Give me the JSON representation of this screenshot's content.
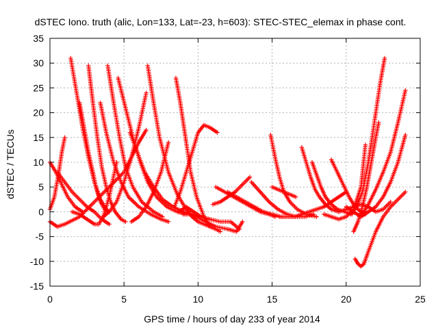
{
  "chart_data": {
    "type": "scatter",
    "title": "dSTEC Iono. truth (alic, Lon=133, Lat=-23, h=603): STEC-STEC_elemax in phase cont.",
    "xlabel": "GPS time / hours of day 233 of year 2014",
    "ylabel": "dSTEC  / TECUs",
    "xlim": [
      0,
      25
    ],
    "ylim": [
      -15,
      35
    ],
    "xticks": [
      0,
      5,
      10,
      15,
      20,
      25
    ],
    "yticks": [
      -15,
      -10,
      -5,
      0,
      5,
      10,
      15,
      20,
      25,
      30,
      35
    ],
    "grid": true,
    "marker": "plus",
    "color": "#ff0000",
    "series": [
      {
        "x": [
          0.0,
          0.3,
          0.6,
          0.8,
          1.0
        ],
        "y": [
          0.5,
          3,
          8,
          12,
          15
        ]
      },
      {
        "x": [
          0.0,
          0.4,
          0.8,
          1.2,
          1.7,
          2.2
        ],
        "y": [
          10,
          8,
          5.5,
          3,
          1,
          0
        ]
      },
      {
        "x": [
          0.0,
          0.5,
          1.0,
          2.0,
          3.0,
          4.0,
          5.0,
          5.5,
          6.0,
          6.5
        ],
        "y": [
          -2,
          -3,
          -2.5,
          -1,
          2,
          5,
          8,
          11,
          14,
          16.5
        ]
      },
      {
        "x": [
          1.4,
          1.8,
          2.2,
          2.6,
          3.0,
          3.4,
          3.8,
          4.0
        ],
        "y": [
          31,
          24,
          17,
          11,
          6,
          2.5,
          0.5,
          0
        ]
      },
      {
        "x": [
          2.0,
          2.3,
          2.6,
          2.9,
          3.1,
          3.4,
          3.7,
          3.9
        ],
        "y": [
          22,
          17,
          12,
          8,
          5,
          2,
          0.5,
          0
        ]
      },
      {
        "x": [
          2.6,
          2.9,
          3.2,
          3.5,
          3.8,
          4.1,
          4.4,
          4.8,
          5.1
        ],
        "y": [
          29.5,
          22,
          15,
          9,
          5,
          2,
          0,
          -1.5,
          -2
        ]
      },
      {
        "x": [
          3.4,
          3.8,
          4.3,
          4.8,
          5.3,
          6.0,
          6.8,
          7.5,
          8.0
        ],
        "y": [
          22,
          16,
          10,
          6,
          3,
          1,
          -0.5,
          -1.5,
          -2
        ]
      },
      {
        "x": [
          3.9,
          4.3,
          4.7,
          5.1,
          5.6,
          6.2,
          7.0,
          7.6
        ],
        "y": [
          29.5,
          22,
          15,
          9,
          5,
          2,
          0,
          -1
        ]
      },
      {
        "x": [
          4.6,
          5.1,
          5.6,
          6.1,
          6.6,
          7.2,
          7.9,
          8.6,
          9.2
        ],
        "y": [
          27,
          21,
          15,
          10,
          6,
          3,
          1,
          0,
          -0.5
        ]
      },
      {
        "x": [
          5.4,
          5.9,
          6.4,
          7.0,
          7.6,
          8.3,
          9.0,
          9.6,
          10.1
        ],
        "y": [
          16,
          12,
          8,
          5,
          2.5,
          1,
          0,
          -0.5,
          -1
        ]
      },
      {
        "x": [
          0.5,
          1.0,
          1.5,
          2.0,
          2.5,
          3.0,
          3.5,
          4.0
        ],
        "y": [
          8,
          6,
          4,
          2.5,
          1,
          0,
          -1.5,
          -2.5
        ]
      },
      {
        "x": [
          1.5,
          2.0,
          2.5,
          3.0,
          3.3,
          3.6,
          4.0,
          4.5
        ],
        "y": [
          0,
          -0.5,
          -1.5,
          -2.5,
          -2.5,
          -1,
          3,
          10
        ]
      },
      {
        "x": [
          3.6,
          4.0,
          4.5,
          5.0,
          5.5,
          6.0,
          6.5
        ],
        "y": [
          -1,
          0,
          2,
          6,
          11,
          17,
          24
        ]
      },
      {
        "x": [
          5.5,
          6.0,
          6.5,
          7.0,
          7.5,
          8.0
        ],
        "y": [
          -2,
          -1,
          1,
          4,
          8,
          14
        ]
      },
      {
        "x": [
          6.6,
          7.0,
          7.4,
          8.0,
          8.6,
          9.2,
          9.6,
          10.0,
          10.4,
          10.8,
          11.2,
          11.5
        ],
        "y": [
          29.5,
          22,
          15,
          8,
          3.5,
          0.5,
          -1,
          -2,
          -2.5,
          -3,
          -3.5,
          -4
        ]
      },
      {
        "x": [
          8.5,
          8.8,
          9.0,
          9.2,
          9.5,
          9.9,
          10.4,
          10.8
        ],
        "y": [
          27,
          22,
          18,
          14,
          8,
          3,
          -1,
          -3
        ]
      },
      {
        "x": [
          8.4,
          8.8,
          9.2,
          9.6,
          10.0,
          10.4,
          10.8,
          11.3
        ],
        "y": [
          1,
          4,
          8,
          12,
          16,
          17.5,
          17,
          16
        ]
      },
      {
        "x": [
          8.7,
          9.2,
          9.7,
          10.2,
          10.8,
          11.5,
          12.2,
          12.8
        ],
        "y": [
          0,
          1,
          0,
          -1,
          -1.5,
          -2,
          -2,
          -3.5
        ]
      },
      {
        "x": [
          9.0,
          9.4,
          9.9,
          10.5,
          11.2,
          12.0,
          12.6,
          13.0
        ],
        "y": [
          -0.5,
          -0.5,
          -1,
          -2,
          -3,
          -3.5,
          -4,
          -2
        ]
      },
      {
        "x": [
          11.0,
          11.5,
          12.0,
          12.5,
          13.0,
          13.5
        ],
        "y": [
          1.5,
          2,
          3,
          4,
          5.5,
          7
        ]
      },
      {
        "x": [
          11.2,
          11.8,
          12.4,
          13.0,
          13.6,
          14.2,
          14.8,
          15.2
        ],
        "y": [
          5,
          4,
          3,
          2,
          1,
          0,
          -0.5,
          -1
        ]
      },
      {
        "x": [
          12.0,
          12.6,
          13.2,
          13.8,
          14.4,
          15.0,
          15.6
        ],
        "y": [
          4,
          3,
          2,
          1,
          0,
          -0.5,
          -1
        ]
      },
      {
        "x": [
          13.6,
          14.2,
          14.8,
          15.4,
          16.0,
          16.6,
          17.2,
          17.8
        ],
        "y": [
          6,
          4,
          2,
          0.5,
          -0.5,
          -1,
          -1,
          -0.5
        ]
      },
      {
        "x": [
          14.9,
          15.2,
          15.5,
          15.8,
          16.2,
          16.7,
          17.3,
          18.0
        ],
        "y": [
          15.5,
          11,
          7,
          4,
          2,
          0.5,
          -0.5,
          -1
        ]
      },
      {
        "x": [
          17.0,
          17.3,
          17.6,
          17.9,
          18.2,
          18.6,
          19.0,
          19.5
        ],
        "y": [
          13,
          10,
          7,
          4.5,
          3,
          1.5,
          0.5,
          0
        ]
      },
      {
        "x": [
          17.7,
          18.0,
          18.3,
          18.6,
          19.0,
          19.4,
          19.9,
          20.4
        ],
        "y": [
          10,
          7.5,
          5,
          3,
          1.5,
          0.5,
          0,
          -0.5
        ]
      },
      {
        "x": [
          15.5,
          16.0,
          16.5,
          17.0,
          17.5,
          18.0,
          18.5,
          19.0,
          19.5,
          20.0
        ],
        "y": [
          -1,
          -1,
          -1,
          -0.5,
          0,
          0.5,
          1,
          2,
          3,
          4
        ]
      },
      {
        "x": [
          15.0,
          15.4,
          15.8,
          16.2,
          16.6
        ],
        "y": [
          5,
          4.5,
          4,
          3.5,
          3
        ]
      },
      {
        "x": [
          19.0,
          19.4,
          19.8,
          20.2,
          20.6,
          21.0,
          21.3
        ],
        "y": [
          10.5,
          8,
          5.5,
          3,
          1,
          0,
          -0.5
        ]
      },
      {
        "x": [
          18.5,
          19.0,
          19.5,
          20.0,
          20.5,
          21.0,
          21.3
        ],
        "y": [
          -0.5,
          -1,
          -1.5,
          -1,
          0.5,
          5,
          13.5
        ]
      },
      {
        "x": [
          20.3,
          20.7,
          21.1,
          21.5,
          22.0,
          22.3,
          22.6
        ],
        "y": [
          -0.5,
          1,
          4,
          10,
          20,
          26,
          31
        ]
      },
      {
        "x": [
          20.5,
          20.8,
          21.1,
          21.4,
          21.7,
          22.0,
          22.2
        ],
        "y": [
          -4,
          -2,
          1,
          5,
          10,
          15,
          18
        ]
      },
      {
        "x": [
          20.6,
          20.8,
          21.0,
          21.2,
          21.5,
          22.0,
          22.5,
          23.0,
          23.5,
          24.0
        ],
        "y": [
          -9.5,
          -10.5,
          -11,
          -10.5,
          -8,
          -4,
          -1,
          1,
          2.5,
          4
        ]
      },
      {
        "x": [
          21.0,
          21.5,
          22.0,
          22.5,
          23.0,
          23.5,
          24.0
        ],
        "y": [
          -1,
          1.5,
          4.5,
          8,
          12,
          18,
          24.5
        ]
      },
      {
        "x": [
          20.0,
          20.5,
          21.0,
          21.5,
          22.0,
          22.5,
          23.0,
          23.5,
          24.0
        ],
        "y": [
          1,
          0,
          -1,
          0,
          1,
          3,
          6,
          10,
          15.5
        ]
      },
      {
        "x": [
          19.5,
          20.0,
          20.5,
          21.0,
          21.5,
          22.0,
          22.5,
          23.0
        ],
        "y": [
          0,
          0.5,
          1,
          1.5,
          1,
          0,
          0.5,
          2
        ]
      }
    ]
  }
}
